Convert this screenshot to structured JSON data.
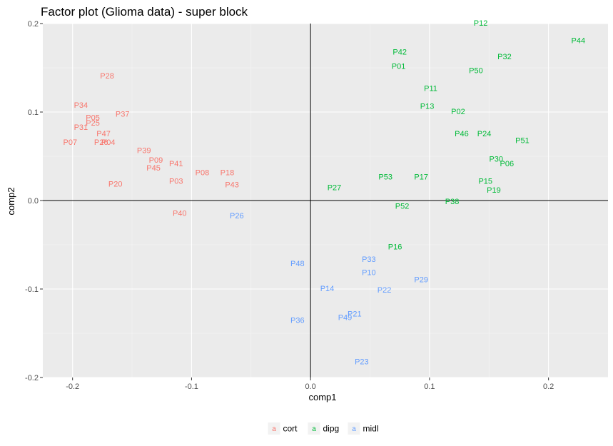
{
  "chart_data": {
    "type": "scatter",
    "title": "Factor plot (Glioma data) - super block",
    "xlabel": "comp1",
    "ylabel": "comp2",
    "xlim": [
      -0.225,
      0.25
    ],
    "ylim": [
      -0.2,
      0.2
    ],
    "x_ticks": [
      -0.2,
      -0.1,
      0.0,
      0.1,
      0.2
    ],
    "x_tick_labels": [
      "-0.2",
      "-0.1",
      "0.0",
      "0.1",
      "0.2"
    ],
    "y_ticks": [
      -0.2,
      -0.1,
      0.0,
      0.1,
      0.2
    ],
    "y_tick_labels": [
      "-0.2",
      "-0.1",
      "0.0",
      "0.1",
      "0.2"
    ],
    "grid": true,
    "reference_lines": {
      "x": 0,
      "y": 0
    },
    "legend_position": "bottom",
    "legend_key_glyph": "a",
    "series": [
      {
        "name": "cort",
        "color": "#f8766d",
        "points": [
          {
            "label": "P28",
            "x": -0.171,
            "y": 0.141
          },
          {
            "label": "P34",
            "x": -0.193,
            "y": 0.108
          },
          {
            "label": "P37",
            "x": -0.158,
            "y": 0.098
          },
          {
            "label": "P05",
            "x": -0.183,
            "y": 0.094
          },
          {
            "label": "P25",
            "x": -0.183,
            "y": 0.088
          },
          {
            "label": "P31",
            "x": -0.193,
            "y": 0.083
          },
          {
            "label": "P47",
            "x": -0.174,
            "y": 0.076
          },
          {
            "label": "P07",
            "x": -0.202,
            "y": 0.066
          },
          {
            "label": "P26",
            "x": -0.176,
            "y": 0.066
          },
          {
            "label": "P04",
            "x": -0.17,
            "y": 0.066
          },
          {
            "label": "P39",
            "x": -0.14,
            "y": 0.057
          },
          {
            "label": "P09",
            "x": -0.13,
            "y": 0.046
          },
          {
            "label": "P41",
            "x": -0.113,
            "y": 0.042
          },
          {
            "label": "P45",
            "x": -0.132,
            "y": 0.037
          },
          {
            "label": "P08",
            "x": -0.091,
            "y": 0.032
          },
          {
            "label": "P18",
            "x": -0.07,
            "y": 0.032
          },
          {
            "label": "P20",
            "x": -0.164,
            "y": 0.019
          },
          {
            "label": "P03",
            "x": -0.113,
            "y": 0.022
          },
          {
            "label": "P43",
            "x": -0.066,
            "y": 0.018
          },
          {
            "label": "P40",
            "x": -0.11,
            "y": -0.014
          }
        ]
      },
      {
        "name": "dipg",
        "color": "#00ba38",
        "points": [
          {
            "label": "P12",
            "x": 0.143,
            "y": 0.201
          },
          {
            "label": "P44",
            "x": 0.225,
            "y": 0.181
          },
          {
            "label": "P42",
            "x": 0.075,
            "y": 0.168
          },
          {
            "label": "P32",
            "x": 0.163,
            "y": 0.163
          },
          {
            "label": "P01",
            "x": 0.074,
            "y": 0.152
          },
          {
            "label": "P50",
            "x": 0.139,
            "y": 0.147
          },
          {
            "label": "P11",
            "x": 0.101,
            "y": 0.127
          },
          {
            "label": "P13",
            "x": 0.098,
            "y": 0.107
          },
          {
            "label": "P02",
            "x": 0.124,
            "y": 0.101
          },
          {
            "label": "P46",
            "x": 0.127,
            "y": 0.076
          },
          {
            "label": "P24",
            "x": 0.146,
            "y": 0.076
          },
          {
            "label": "P51",
            "x": 0.178,
            "y": 0.068
          },
          {
            "label": "P30",
            "x": 0.156,
            "y": 0.047
          },
          {
            "label": "P06",
            "x": 0.165,
            "y": 0.042
          },
          {
            "label": "P53",
            "x": 0.063,
            "y": 0.027
          },
          {
            "label": "P17",
            "x": 0.093,
            "y": 0.027
          },
          {
            "label": "P15",
            "x": 0.147,
            "y": 0.022
          },
          {
            "label": "P27",
            "x": 0.02,
            "y": 0.015
          },
          {
            "label": "P19",
            "x": 0.154,
            "y": 0.012
          },
          {
            "label": "P38",
            "x": 0.119,
            "y": -0.001
          },
          {
            "label": "P52",
            "x": 0.077,
            "y": -0.006
          },
          {
            "label": "P16",
            "x": 0.071,
            "y": -0.052
          }
        ]
      },
      {
        "name": "midl",
        "color": "#619cff",
        "points": [
          {
            "label": "P26",
            "x": -0.062,
            "y": -0.017
          },
          {
            "label": "P33",
            "x": 0.049,
            "y": -0.066
          },
          {
            "label": "P48",
            "x": -0.011,
            "y": -0.071
          },
          {
            "label": "P10",
            "x": 0.049,
            "y": -0.081
          },
          {
            "label": "P29",
            "x": 0.093,
            "y": -0.089
          },
          {
            "label": "P14",
            "x": 0.014,
            "y": -0.099
          },
          {
            "label": "P22",
            "x": 0.062,
            "y": -0.101
          },
          {
            "label": "P21",
            "x": 0.037,
            "y": -0.128
          },
          {
            "label": "P49",
            "x": 0.029,
            "y": -0.132
          },
          {
            "label": "P36",
            "x": -0.011,
            "y": -0.135
          },
          {
            "label": "P23",
            "x": 0.043,
            "y": -0.182
          }
        ]
      }
    ]
  }
}
